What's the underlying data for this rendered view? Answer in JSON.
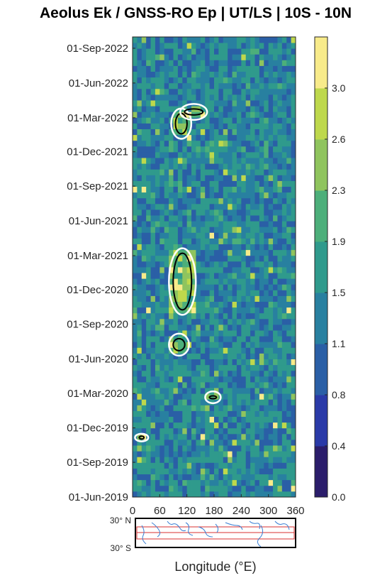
{
  "chart_data": {
    "type": "heatmap",
    "title": "Aeolus Ek / GNSS-RO Ep | UT/LS | 10S - 10N",
    "xlabel": "Longitude (°E)",
    "ylabel": "",
    "x_ticks": [
      "0",
      "60",
      "120",
      "180",
      "240",
      "300",
      "360"
    ],
    "xlim": [
      0,
      360
    ],
    "y_ticks": [
      "01-Jun-2019",
      "01-Sep-2019",
      "01-Dec-2019",
      "01-Mar-2020",
      "01-Jun-2020",
      "01-Sep-2020",
      "01-Dec-2020",
      "01-Mar-2021",
      "01-Jun-2021",
      "01-Sep-2021",
      "01-Dec-2021",
      "01-Mar-2022",
      "01-Jun-2022",
      "01-Sep-2022"
    ],
    "ylim": [
      "01-Jun-2019",
      "01-Oct-2022"
    ],
    "colorbar": {
      "ticks": [
        "0.0",
        "0.4",
        "0.8",
        "1.1",
        "1.5",
        "1.9",
        "2.3",
        "2.6",
        "3.0"
      ],
      "range": [
        0,
        3
      ],
      "colors": [
        "#2b1d6b",
        "#2a3aa8",
        "#2a5fa6",
        "#2880a0",
        "#2f9a8c",
        "#4caf7a",
        "#8fc45e",
        "#bed84c",
        "#f8eb8a"
      ]
    },
    "high_ratio_regions": [
      {
        "lon": [
          90,
          125
        ],
        "date": [
          "10-Jan-2022",
          "20-Mar-2022"
        ]
      },
      {
        "lon": [
          110,
          160
        ],
        "date": [
          "01-Mar-2022",
          "01-Apr-2022"
        ]
      },
      {
        "lon": [
          85,
          135
        ],
        "date": [
          "01-Oct-2020",
          "15-Mar-2021"
        ]
      },
      {
        "lon": [
          85,
          120
        ],
        "date": [
          "15-Jun-2020",
          "01-Aug-2020"
        ]
      },
      {
        "lon": [
          165,
          190
        ],
        "date": [
          "10-Feb-2020",
          "01-Mar-2020"
        ]
      },
      {
        "lon": [
          10,
          30
        ],
        "date": [
          "01-Nov-2019",
          "10-Nov-2019"
        ]
      }
    ],
    "map_inset": {
      "lat_labels": [
        "30° N",
        "30° S"
      ]
    }
  }
}
